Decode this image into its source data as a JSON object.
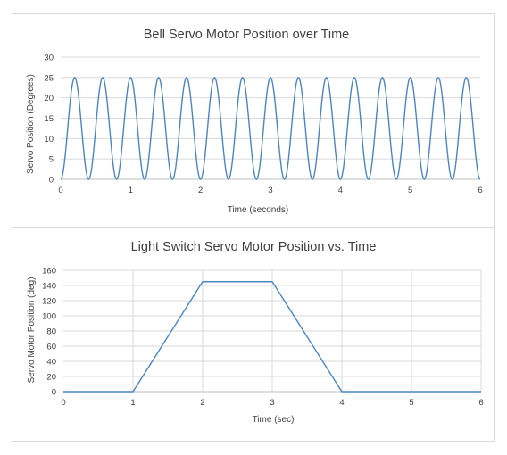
{
  "chart_data": [
    {
      "type": "line",
      "title": "Bell Servo Motor Position over Time",
      "xlabel": "Time (seconds)",
      "ylabel": "Servo Position (Degrees)",
      "xlim": [
        0,
        6
      ],
      "ylim": [
        0,
        30
      ],
      "xticks": [
        0,
        1,
        2,
        3,
        4,
        5,
        6
      ],
      "yticks": [
        0,
        5,
        10,
        15,
        20,
        25,
        30
      ],
      "grid": "horizontal",
      "series": [
        {
          "color": "#4a86c5",
          "function": "sine-squared oscillation between 0 and 25, period 0.4 s, 15 cycles",
          "amplitude": 25,
          "period": 0.4
        }
      ]
    },
    {
      "type": "line",
      "title": "Light Switch Servo Motor Position vs. Time",
      "xlabel": "Time (sec)",
      "ylabel": "Servo Motor Position (deg)",
      "xlim": [
        0,
        6
      ],
      "ylim": [
        0,
        160
      ],
      "xticks": [
        0,
        1,
        2,
        3,
        4,
        5,
        6
      ],
      "yticks": [
        0,
        20,
        40,
        60,
        80,
        100,
        120,
        140,
        160
      ],
      "grid": "both",
      "series": [
        {
          "color": "#4a86c5",
          "x": [
            0,
            1,
            2,
            3,
            4,
            6
          ],
          "y": [
            0,
            0,
            145,
            145,
            0,
            0
          ]
        }
      ]
    }
  ]
}
